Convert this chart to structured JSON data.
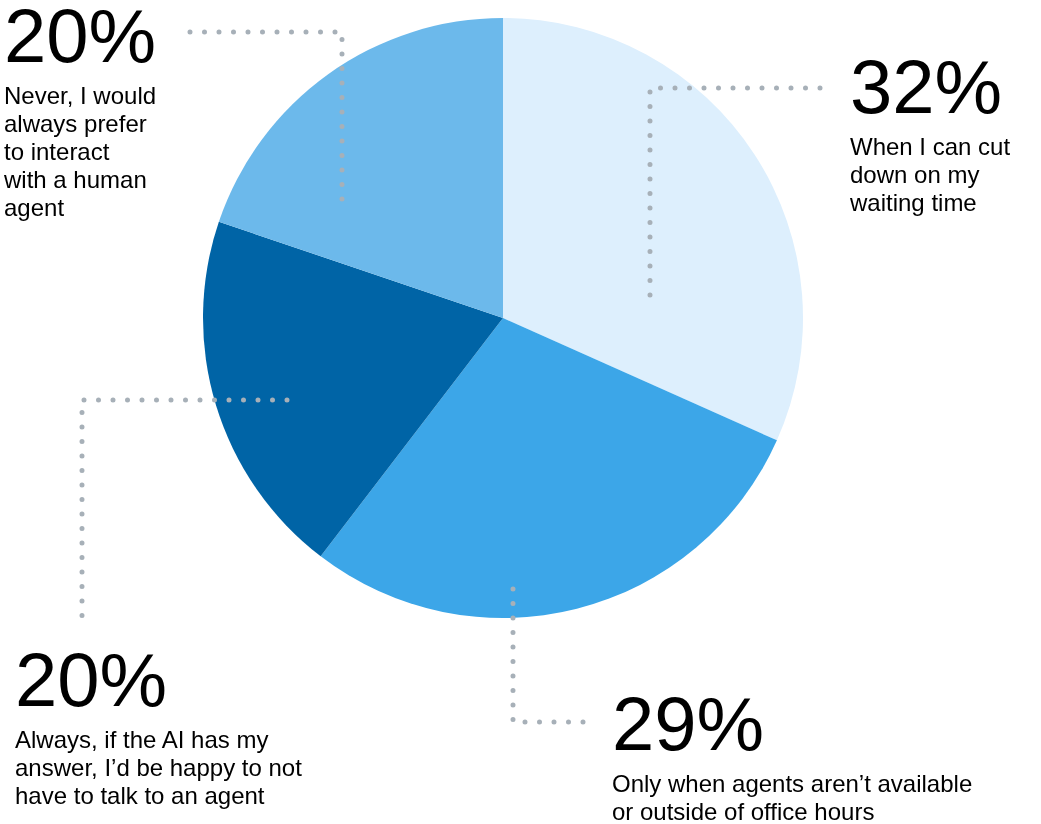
{
  "chart_data": {
    "type": "pie",
    "categories": [
      "When I can cut down on my waiting time",
      "Only when agents aren’t available or outside of office hours",
      "Always, if the AI has my answer, I’d be happy to not have to talk to an agent",
      "Never, I would always prefer to interact with a human agent"
    ],
    "values": [
      32,
      29,
      20,
      20
    ],
    "colors": [
      "#ddeffd",
      "#3ca6e8",
      "#0064a6",
      "#6cb9eb"
    ],
    "value_labels": [
      "32%",
      "29%",
      "20%",
      "20%"
    ]
  }
}
